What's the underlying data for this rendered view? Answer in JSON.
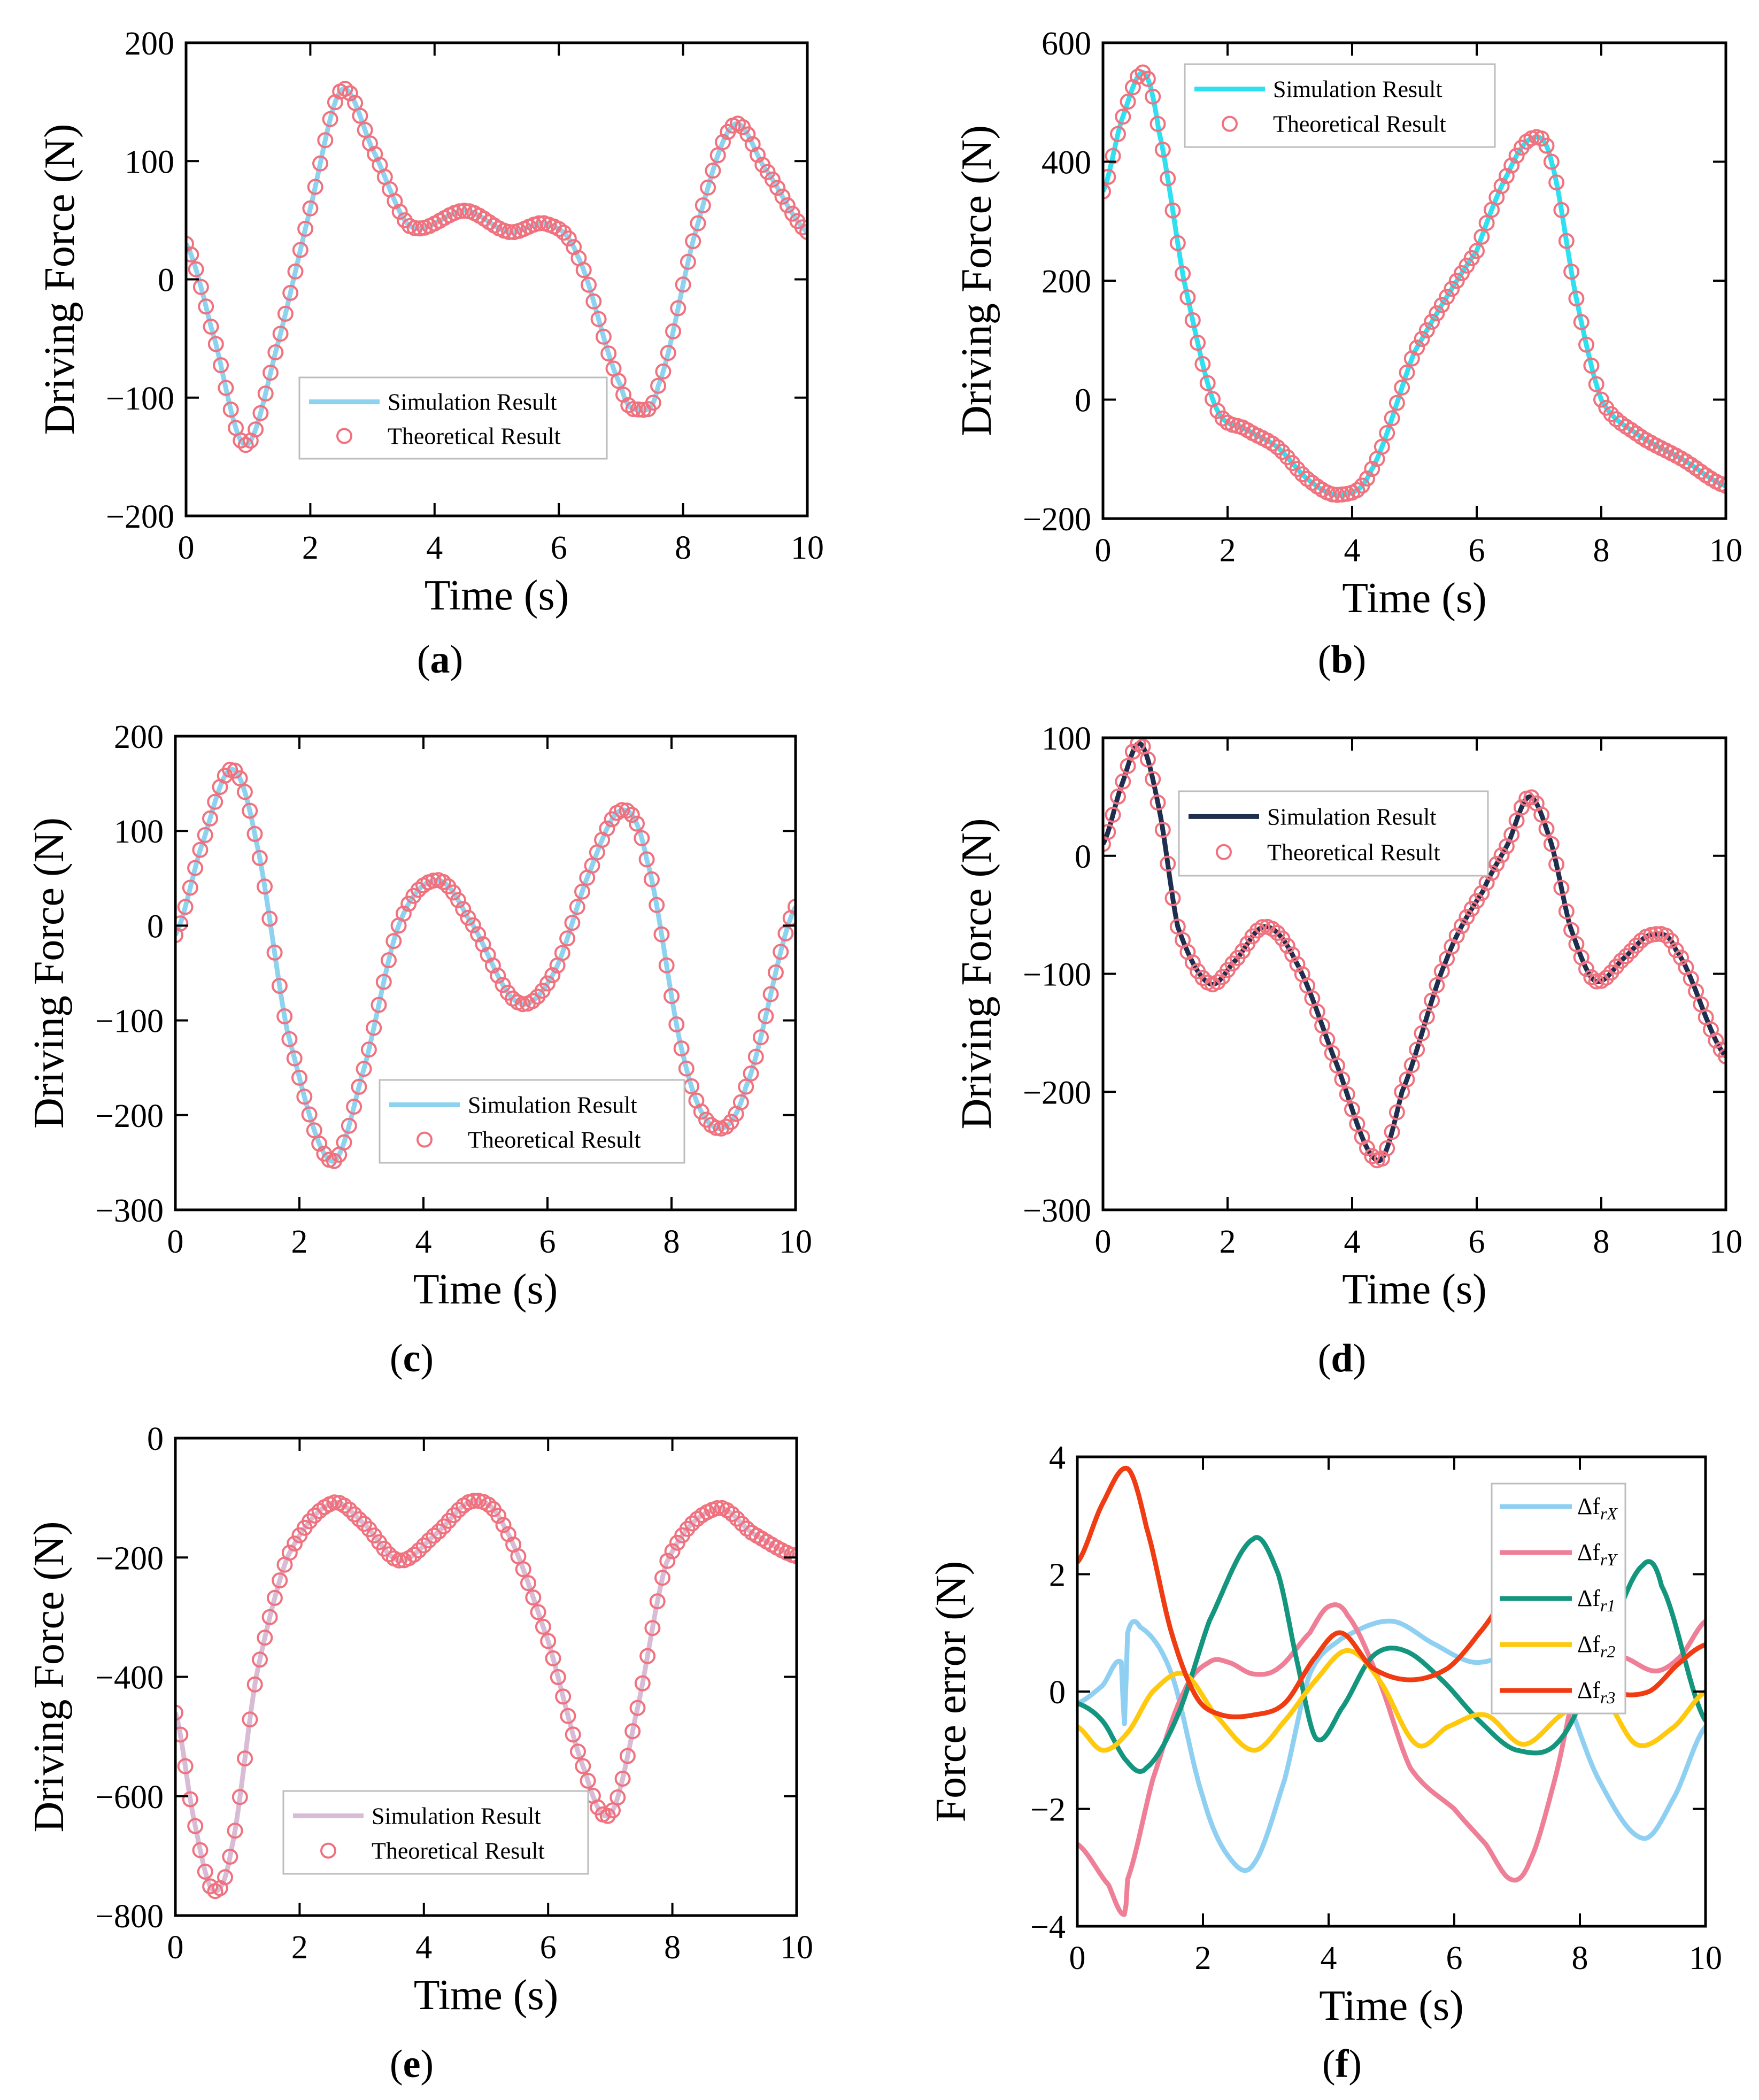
{
  "chart_data": [
    {
      "type": "line",
      "panel": "a",
      "caption_letter": "a",
      "xlabel": "Time (s)",
      "ylabel": "Driving Force (N)",
      "xlim": [
        0,
        10
      ],
      "ylim": [
        -200,
        200
      ],
      "xticks": [
        0,
        2,
        4,
        6,
        8,
        10
      ],
      "yticks": [
        -200,
        -100,
        0,
        100,
        200
      ],
      "ytick_labels": [
        "−200",
        "−100",
        "0",
        "100",
        "200"
      ],
      "legend": {
        "location": "bottom-center",
        "simulation_label": "Simulation Result",
        "theoretical_label": "Theoretical Result"
      },
      "colors": {
        "simulation": "#8dd3f0",
        "theoretical": "#f0727f"
      },
      "key_points": [
        [
          0,
          30
        ],
        [
          0.4,
          -40
        ],
        [
          0.95,
          -140
        ],
        [
          1.5,
          -50
        ],
        [
          2.0,
          60
        ],
        [
          2.5,
          160
        ],
        [
          3.0,
          110
        ],
        [
          3.6,
          45
        ],
        [
          4.5,
          58
        ],
        [
          5.2,
          40
        ],
        [
          5.8,
          47
        ],
        [
          6.3,
          20
        ],
        [
          7.0,
          -90
        ],
        [
          7.3,
          -110
        ],
        [
          7.6,
          -90
        ],
        [
          8.2,
          40
        ],
        [
          8.8,
          130
        ],
        [
          9.3,
          95
        ],
        [
          10,
          40
        ]
      ],
      "series": [
        {
          "name": "Simulation Result",
          "style": "line",
          "color": "#8dd3f0"
        },
        {
          "name": "Theoretical Result",
          "style": "markers",
          "color": "#f0727f"
        }
      ]
    },
    {
      "type": "line",
      "panel": "b",
      "caption_letter": "b",
      "xlabel": "Time (s)",
      "ylabel": "Driving Force (N)",
      "xlim": [
        0,
        10
      ],
      "ylim": [
        -200,
        600
      ],
      "xticks": [
        0,
        2,
        4,
        6,
        8,
        10
      ],
      "yticks": [
        -200,
        0,
        200,
        400,
        600
      ],
      "ytick_labels": [
        "−200",
        "0",
        "200",
        "400",
        "600"
      ],
      "legend": {
        "location": "top-center",
        "simulation_label": "Simulation Result",
        "theoretical_label": "Theoretical Result"
      },
      "colors": {
        "simulation": "#2ee0f0",
        "theoretical": "#f0727f"
      },
      "key_points": [
        [
          0,
          350
        ],
        [
          0.3,
          470
        ],
        [
          0.65,
          550
        ],
        [
          0.9,
          450
        ],
        [
          1.3,
          200
        ],
        [
          1.8,
          -10
        ],
        [
          2.3,
          -50
        ],
        [
          2.8,
          -80
        ],
        [
          3.3,
          -135
        ],
        [
          3.8,
          -160
        ],
        [
          4.3,
          -120
        ],
        [
          5.0,
          80
        ],
        [
          6.0,
          250
        ],
        [
          6.5,
          380
        ],
        [
          6.9,
          440
        ],
        [
          7.2,
          400
        ],
        [
          7.6,
          170
        ],
        [
          8.0,
          0
        ],
        [
          8.6,
          -60
        ],
        [
          9.3,
          -100
        ],
        [
          10,
          -145
        ]
      ],
      "series": [
        {
          "name": "Simulation Result",
          "style": "line",
          "color": "#2ee0f0"
        },
        {
          "name": "Theoretical Result",
          "style": "markers",
          "color": "#f0727f"
        }
      ]
    },
    {
      "type": "line",
      "panel": "c",
      "caption_letter": "c",
      "xlabel": "Time (s)",
      "ylabel": "Driving Force (N)",
      "xlim": [
        0,
        10
      ],
      "ylim": [
        -300,
        200
      ],
      "xticks": [
        0,
        2,
        4,
        6,
        8,
        10
      ],
      "yticks": [
        -300,
        -200,
        -100,
        0,
        100,
        200
      ],
      "ytick_labels": [
        "−300",
        "−200",
        "−100",
        "0",
        "100",
        "200"
      ],
      "legend": {
        "location": "bottom-right",
        "simulation_label": "Simulation Result",
        "theoretical_label": "Theoretical Result"
      },
      "colors": {
        "simulation": "#8dd3f0",
        "theoretical": "#f0727f"
      },
      "key_points": [
        [
          0,
          -10
        ],
        [
          0.4,
          80
        ],
        [
          0.9,
          165
        ],
        [
          1.3,
          90
        ],
        [
          1.8,
          -110
        ],
        [
          2.5,
          -248
        ],
        [
          3.0,
          -160
        ],
        [
          3.6,
          0
        ],
        [
          4.2,
          48
        ],
        [
          4.7,
          10
        ],
        [
          5.5,
          -80
        ],
        [
          6.1,
          -50
        ],
        [
          6.7,
          60
        ],
        [
          7.2,
          122
        ],
        [
          7.6,
          70
        ],
        [
          8.2,
          -140
        ],
        [
          8.7,
          -213
        ],
        [
          9.2,
          -170
        ],
        [
          10,
          20
        ]
      ],
      "series": [
        {
          "name": "Simulation Result",
          "style": "line",
          "color": "#8dd3f0"
        },
        {
          "name": "Theoretical Result",
          "style": "markers",
          "color": "#f0727f"
        }
      ]
    },
    {
      "type": "line",
      "panel": "d",
      "caption_letter": "d",
      "xlabel": "Time (s)",
      "ylabel": "Driving Force (N)",
      "xlim": [
        0,
        10
      ],
      "ylim": [
        -300,
        100
      ],
      "xticks": [
        0,
        2,
        4,
        6,
        8,
        10
      ],
      "yticks": [
        -300,
        -200,
        -100,
        0,
        100
      ],
      "ytick_labels": [
        "−300",
        "−200",
        "−100",
        "0",
        "100"
      ],
      "legend": {
        "location": "top-right",
        "simulation_label": "Simulation Result",
        "theoretical_label": "Theoretical Result"
      },
      "colors": {
        "simulation": "#1f2e4f",
        "theoretical": "#f0727f"
      },
      "key_points": [
        [
          0,
          10
        ],
        [
          0.3,
          60
        ],
        [
          0.6,
          95
        ],
        [
          0.9,
          40
        ],
        [
          1.2,
          -60
        ],
        [
          1.7,
          -108
        ],
        [
          2.1,
          -90
        ],
        [
          2.6,
          -60
        ],
        [
          3.1,
          -90
        ],
        [
          3.7,
          -170
        ],
        [
          4.4,
          -258
        ],
        [
          4.8,
          -200
        ],
        [
          5.5,
          -90
        ],
        [
          6.1,
          -30
        ],
        [
          6.5,
          10
        ],
        [
          6.85,
          50
        ],
        [
          7.2,
          10
        ],
        [
          7.5,
          -60
        ],
        [
          7.9,
          -106
        ],
        [
          8.4,
          -85
        ],
        [
          8.8,
          -67
        ],
        [
          9.2,
          -80
        ],
        [
          10,
          -170
        ]
      ],
      "series": [
        {
          "name": "Simulation Result",
          "style": "line",
          "color": "#1f2e4f"
        },
        {
          "name": "Theoretical Result",
          "style": "markers",
          "color": "#f0727f"
        }
      ]
    },
    {
      "type": "line",
      "panel": "e",
      "caption_letter": "e",
      "xlabel": "Time (s)",
      "ylabel": "Driving Force (N)",
      "xlim": [
        0,
        10
      ],
      "ylim": [
        -800,
        0
      ],
      "xticks": [
        0,
        2,
        4,
        6,
        8,
        10
      ],
      "yticks": [
        -800,
        -600,
        -400,
        -200,
        0
      ],
      "ytick_labels": [
        "−800",
        "−600",
        "−400",
        "−200",
        "0"
      ],
      "legend": {
        "location": "bottom-center",
        "simulation_label": "Simulation Result",
        "theoretical_label": "Theoretical Result"
      },
      "colors": {
        "simulation": "#d8bcd6",
        "theoretical": "#f0727f"
      },
      "key_points": [
        [
          0,
          -460
        ],
        [
          0.3,
          -640
        ],
        [
          0.6,
          -757
        ],
        [
          0.9,
          -690
        ],
        [
          1.3,
          -400
        ],
        [
          1.8,
          -200
        ],
        [
          2.5,
          -110
        ],
        [
          3.0,
          -140
        ],
        [
          3.6,
          -205
        ],
        [
          4.2,
          -160
        ],
        [
          4.8,
          -105
        ],
        [
          5.3,
          -150
        ],
        [
          6.0,
          -340
        ],
        [
          6.6,
          -560
        ],
        [
          7.0,
          -630
        ],
        [
          7.4,
          -470
        ],
        [
          7.9,
          -210
        ],
        [
          8.7,
          -118
        ],
        [
          9.3,
          -160
        ],
        [
          10,
          -198
        ]
      ],
      "series": [
        {
          "name": "Simulation Result",
          "style": "line",
          "color": "#d8bcd6"
        },
        {
          "name": "Theoretical Result",
          "style": "markers",
          "color": "#f0727f"
        }
      ]
    },
    {
      "type": "line",
      "panel": "f",
      "caption_letter": "f",
      "xlabel": "Time (s)",
      "ylabel": "Force error (N)",
      "xlim": [
        0,
        10
      ],
      "ylim": [
        -4,
        4
      ],
      "xticks": [
        0,
        2,
        4,
        6,
        8,
        10
      ],
      "yticks": [
        -4,
        -2,
        0,
        2,
        4
      ],
      "ytick_labels": [
        "−4",
        "−2",
        "0",
        "2",
        "4"
      ],
      "legend": {
        "location": "top-right"
      },
      "series": [
        {
          "name": "Δf_rX",
          "base": "Δf",
          "sub": "rX",
          "color": "#8fd0f2",
          "points": [
            [
              0,
              -0.2
            ],
            [
              0.4,
              0.1
            ],
            [
              0.7,
              0.5
            ],
            [
              0.75,
              -0.55
            ],
            [
              0.8,
              1.0
            ],
            [
              1.0,
              1.1
            ],
            [
              1.5,
              0.3
            ],
            [
              2.0,
              -1.8
            ],
            [
              2.4,
              -2.8
            ],
            [
              2.8,
              -2.95
            ],
            [
              3.3,
              -1.5
            ],
            [
              3.7,
              0.3
            ],
            [
              4.2,
              0.9
            ],
            [
              5.0,
              1.2
            ],
            [
              5.7,
              0.8
            ],
            [
              6.3,
              0.5
            ],
            [
              7.0,
              0.6
            ],
            [
              7.6,
              0.3
            ],
            [
              8.3,
              -1.5
            ],
            [
              9.0,
              -2.5
            ],
            [
              9.5,
              -1.8
            ],
            [
              10,
              -0.6
            ]
          ]
        },
        {
          "name": "Δf_rY",
          "base": "Δf",
          "sub": "rY",
          "color": "#ef7f97",
          "points": [
            [
              0,
              -2.6
            ],
            [
              0.5,
              -3.3
            ],
            [
              0.75,
              -3.8
            ],
            [
              0.8,
              -3.2
            ],
            [
              1.2,
              -1.5
            ],
            [
              1.7,
              0.0
            ],
            [
              2.1,
              0.5
            ],
            [
              2.4,
              0.5
            ],
            [
              2.8,
              0.3
            ],
            [
              3.2,
              0.4
            ],
            [
              3.7,
              1.0
            ],
            [
              4.0,
              1.45
            ],
            [
              4.3,
              1.3
            ],
            [
              4.8,
              0.2
            ],
            [
              5.3,
              -1.3
            ],
            [
              6.0,
              -2.0
            ],
            [
              6.5,
              -2.6
            ],
            [
              6.9,
              -3.2
            ],
            [
              7.2,
              -2.9
            ],
            [
              7.6,
              -1.5
            ],
            [
              8.0,
              0.3
            ],
            [
              8.6,
              0.6
            ],
            [
              9.2,
              0.35
            ],
            [
              9.6,
              0.6
            ],
            [
              10,
              1.2
            ]
          ]
        },
        {
          "name": "Δf_r1",
          "base": "Δf",
          "sub": "r1",
          "color": "#14967e",
          "points": [
            [
              0,
              -0.2
            ],
            [
              0.4,
              -0.5
            ],
            [
              0.8,
              -1.2
            ],
            [
              1.1,
              -1.3
            ],
            [
              1.6,
              -0.4
            ],
            [
              2.1,
              1.2
            ],
            [
              2.8,
              2.6
            ],
            [
              3.2,
              2.0
            ],
            [
              3.5,
              0.5
            ],
            [
              3.8,
              -0.8
            ],
            [
              4.2,
              -0.3
            ],
            [
              4.7,
              0.6
            ],
            [
              5.2,
              0.7
            ],
            [
              5.8,
              0.2
            ],
            [
              6.4,
              -0.5
            ],
            [
              7.0,
              -1.0
            ],
            [
              7.7,
              -0.8
            ],
            [
              8.5,
              1.0
            ],
            [
              9.0,
              2.15
            ],
            [
              9.3,
              1.8
            ],
            [
              10,
              -0.5
            ]
          ]
        },
        {
          "name": "Δf_r2",
          "base": "Δf",
          "sub": "r2",
          "color": "#ffc90e",
          "points": [
            [
              0,
              -0.6
            ],
            [
              0.4,
              -1.0
            ],
            [
              0.8,
              -0.7
            ],
            [
              1.2,
              0.0
            ],
            [
              1.7,
              0.3
            ],
            [
              2.2,
              -0.4
            ],
            [
              2.8,
              -1.0
            ],
            [
              3.3,
              -0.5
            ],
            [
              3.8,
              0.2
            ],
            [
              4.3,
              0.7
            ],
            [
              4.8,
              0.2
            ],
            [
              5.4,
              -0.9
            ],
            [
              5.9,
              -0.6
            ],
            [
              6.5,
              -0.4
            ],
            [
              7.1,
              -0.9
            ],
            [
              7.7,
              -0.4
            ],
            [
              8.3,
              0.0
            ],
            [
              8.9,
              -0.9
            ],
            [
              9.5,
              -0.6
            ],
            [
              10,
              0.0
            ]
          ]
        },
        {
          "name": "Δf_r3",
          "base": "Δf",
          "sub": "r3",
          "color": "#f03c12",
          "points": [
            [
              0,
              2.2
            ],
            [
              0.4,
              3.2
            ],
            [
              0.8,
              3.8
            ],
            [
              1.1,
              2.8
            ],
            [
              1.5,
              1.0
            ],
            [
              1.9,
              -0.1
            ],
            [
              2.3,
              -0.4
            ],
            [
              2.8,
              -0.4
            ],
            [
              3.3,
              -0.2
            ],
            [
              3.8,
              0.6
            ],
            [
              4.2,
              1.0
            ],
            [
              4.7,
              0.4
            ],
            [
              5.3,
              0.2
            ],
            [
              5.9,
              0.4
            ],
            [
              6.4,
              1.0
            ],
            [
              7.0,
              1.8
            ],
            [
              7.5,
              1.7
            ],
            [
              8.0,
              0.4
            ],
            [
              8.5,
              0.0
            ],
            [
              9.1,
              0.0
            ],
            [
              9.6,
              0.5
            ],
            [
              10,
              0.8
            ]
          ]
        }
      ]
    }
  ]
}
